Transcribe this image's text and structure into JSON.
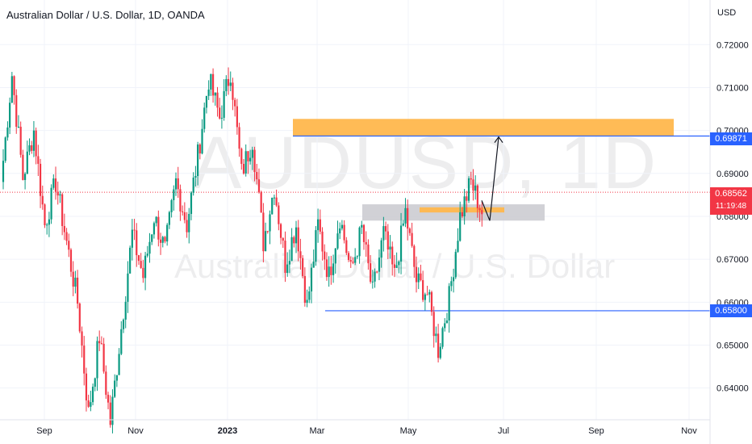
{
  "title": "Australian Dollar / U.S. Dollar, 1D, OANDA",
  "currency": "USD",
  "watermark": {
    "symbol": "AUDUSD, 1D",
    "description": "Australian Dollar / U.S. Dollar"
  },
  "price_tags": [
    {
      "label": "0.69871",
      "color": "#2962ff"
    },
    {
      "label": "0.68562",
      "sub": "11:19:48",
      "color": "#f23645"
    },
    {
      "label": "0.65800",
      "color": "#2962ff"
    }
  ],
  "chart_data": {
    "type": "candlestick",
    "y_axis": {
      "ticks": [
        "0.64000",
        "0.65000",
        "0.66000",
        "0.67000",
        "0.68000",
        "0.69000",
        "0.70000",
        "0.71000",
        "0.72000"
      ],
      "range": [
        0.6326,
        0.7304
      ]
    },
    "x_axis": {
      "ticks": [
        "Sep",
        "Nov",
        "2023",
        "Mar",
        "May",
        "Jul",
        "Sep",
        "Nov"
      ]
    },
    "last_price": 0.68562,
    "horizontal_lines": [
      {
        "price": 0.69871,
        "color": "#2962ff"
      },
      {
        "price": 0.658,
        "color": "#2962ff"
      }
    ],
    "zones": [
      {
        "color": "#ffb74d",
        "top": 0.7027,
        "bottom": 0.6988
      },
      {
        "color": "#c9c9cf",
        "top": 0.6828,
        "bottom": 0.679
      },
      {
        "color": "#ffb74d",
        "top": 0.6821,
        "bottom": 0.6809
      }
    ],
    "projection": [
      0.6837,
      0.679,
      0.6985
    ],
    "colors": {
      "up": "#089981",
      "down": "#f23645"
    },
    "segments": [
      [
        0.688,
        0.713
      ],
      [
        0.713,
        0.689
      ],
      [
        0.689,
        0.7
      ],
      [
        0.7,
        0.678
      ],
      [
        0.678,
        0.688
      ],
      [
        0.688,
        0.674
      ],
      [
        0.674,
        0.66
      ],
      [
        0.66,
        0.634
      ],
      [
        0.634,
        0.652
      ],
      [
        0.652,
        0.632
      ],
      [
        0.632,
        0.654
      ],
      [
        0.654,
        0.676
      ],
      [
        0.676,
        0.666
      ],
      [
        0.666,
        0.68
      ],
      [
        0.68,
        0.672
      ],
      [
        0.672,
        0.688
      ],
      [
        0.688,
        0.678
      ],
      [
        0.678,
        0.694
      ],
      [
        0.694,
        0.712
      ],
      [
        0.712,
        0.703
      ],
      [
        0.703,
        0.714
      ],
      [
        0.714,
        0.69
      ],
      [
        0.69,
        0.698
      ],
      [
        0.698,
        0.674
      ],
      [
        0.674,
        0.687
      ],
      [
        0.687,
        0.669
      ],
      [
        0.669,
        0.678
      ],
      [
        0.678,
        0.659
      ],
      [
        0.659,
        0.678
      ],
      [
        0.678,
        0.666
      ],
      [
        0.666,
        0.68
      ],
      [
        0.68,
        0.667
      ],
      [
        0.667,
        0.677
      ],
      [
        0.677,
        0.662
      ],
      [
        0.662,
        0.676
      ],
      [
        0.676,
        0.666
      ],
      [
        0.666,
        0.681
      ],
      [
        0.681,
        0.665
      ],
      [
        0.665,
        0.662
      ],
      [
        0.662,
        0.649
      ],
      [
        0.649,
        0.661
      ],
      [
        0.661,
        0.68
      ],
      [
        0.68,
        0.688
      ],
      [
        0.688,
        0.681
      ]
    ]
  }
}
